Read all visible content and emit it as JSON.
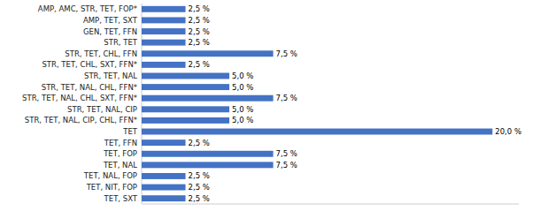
{
  "chart_data": {
    "type": "bar",
    "orientation": "horizontal",
    "categories": [
      "TET, SXT",
      "TET, NIT, FOP",
      "TET, NAL, FOP",
      "TET, NAL",
      "TET, FOP",
      "TET, FFN",
      "TET",
      "STR, TET, NAL, CIP, CHL, FFN*",
      "STR, TET, NAL, CIP",
      "STR, TET, NAL, CHL, SXT, FFN*",
      "STR, TET, NAL, CHL, FFN*",
      "STR, TET, NAL",
      "STR, TET, CHL, SXT, FFN*",
      "STR, TET, CHL, FFN",
      "STR, TET",
      "GEN, TET, FFN",
      "AMP, TET, SXT",
      "AMP, AMC, STR, TET, FOP*"
    ],
    "values": [
      2.5,
      2.5,
      2.5,
      7.5,
      7.5,
      2.5,
      20.0,
      5.0,
      5.0,
      7.5,
      5.0,
      5.0,
      2.5,
      7.5,
      2.5,
      2.5,
      2.5,
      2.5
    ],
    "value_labels": [
      "2,5 %",
      "2,5 %",
      "2,5 %",
      "7,5 %",
      "7,5 %",
      "2,5 %",
      "20,0 %",
      "5,0 %",
      "5,0 %",
      "7,5 %",
      "5,0 %",
      "5,0 %",
      "2,5 %",
      "7,5 %",
      "2,5 %",
      "2,5 %",
      "2,5 %",
      "2,5 %"
    ],
    "color": "#4472C4",
    "xlim": [
      0,
      21.5
    ],
    "xticks": [],
    "data_labels": true,
    "tick_labels": "y",
    "grid": false
  }
}
